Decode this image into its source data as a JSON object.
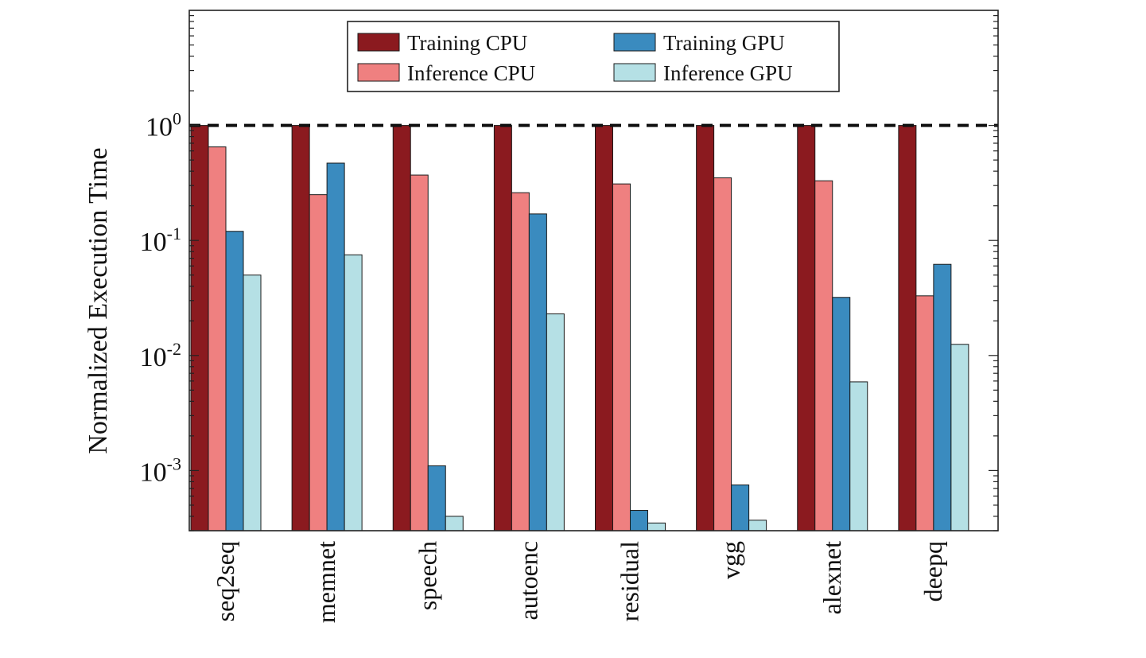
{
  "chart_data": {
    "type": "bar",
    "title": "",
    "xlabel": "",
    "ylabel": "Normalized Execution Time",
    "yscale": "log",
    "ylim": [
      0.0003,
      10
    ],
    "yticks": [
      {
        "base": "10",
        "exp": "0"
      },
      {
        "base": "10",
        "exp": "-1"
      },
      {
        "base": "10",
        "exp": "-2"
      },
      {
        "base": "10",
        "exp": "-3"
      }
    ],
    "reference_line": 1.0,
    "legend_position": "top-center",
    "categories": [
      "seq2seq",
      "memnet",
      "speech",
      "autoenc",
      "residual",
      "vgg",
      "alexnet",
      "deepq"
    ],
    "series": [
      {
        "name": "Training CPU",
        "color": "#8b1a1f",
        "values": [
          1.0,
          1.0,
          1.0,
          1.0,
          1.0,
          1.0,
          1.0,
          1.0
        ]
      },
      {
        "name": "Inference CPU",
        "color": "#ef8080",
        "values": [
          0.65,
          0.25,
          0.37,
          0.26,
          0.31,
          0.35,
          0.33,
          0.033
        ]
      },
      {
        "name": "Training GPU",
        "color": "#3a8bbf",
        "values": [
          0.12,
          0.47,
          0.0011,
          0.17,
          0.00045,
          0.00075,
          0.032,
          0.062
        ]
      },
      {
        "name": "Inference GPU",
        "color": "#b5e0e5",
        "values": [
          0.05,
          0.075,
          0.0004,
          0.023,
          0.00035,
          0.00037,
          0.0059,
          0.0125
        ]
      }
    ]
  }
}
